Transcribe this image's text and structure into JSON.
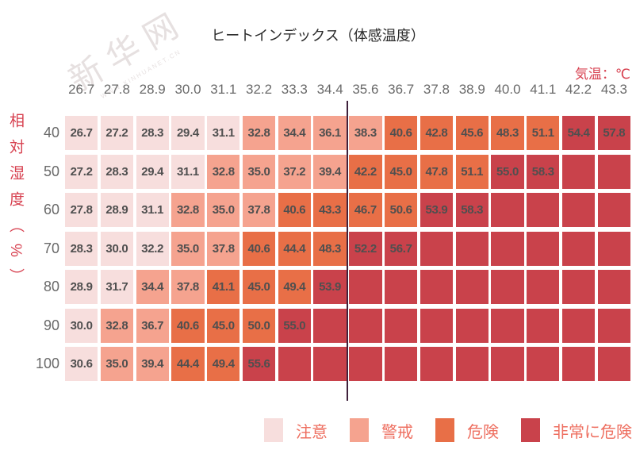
{
  "watermark": {
    "text": "新华网",
    "subtext": "WWW.XINHUANET.CN"
  },
  "colors": {
    "level1": "#f7dedd",
    "level2": "#f5a38f",
    "level3": "#e86f47",
    "level4": "#c9424b",
    "accent_red": "#d7404f",
    "legend_text": "#ee6f60",
    "divider_line": "#40213c",
    "header_text": "#6a6a6a",
    "cell_text": "#4f4f4f"
  },
  "legend": [
    {
      "label": "注意",
      "level": 1
    },
    {
      "label": "警戒",
      "level": 2
    },
    {
      "label": "危険",
      "level": 3
    },
    {
      "label": "非常に危険",
      "level": 4
    }
  ],
  "chart_data": {
    "type": "heatmap",
    "title": "ヒートインデックス（体感温度）",
    "x_label": "気温：℃",
    "y_label": "相対湿度（%）",
    "x": [
      26.7,
      27.8,
      28.9,
      30.0,
      31.1,
      32.2,
      33.3,
      34.4,
      35.6,
      36.7,
      37.8,
      38.9,
      40.0,
      41.1,
      42.2,
      43.3
    ],
    "y": [
      40,
      50,
      60,
      70,
      80,
      90,
      100
    ],
    "values": [
      [
        26.7,
        27.2,
        28.3,
        29.4,
        31.1,
        32.8,
        34.4,
        36.1,
        38.3,
        40.6,
        42.8,
        45.6,
        48.3,
        51.1,
        54.4,
        57.8
      ],
      [
        27.2,
        28.3,
        29.4,
        31.1,
        32.8,
        35.0,
        37.2,
        39.4,
        42.2,
        45.0,
        47.8,
        51.1,
        55.0,
        58.3,
        null,
        null
      ],
      [
        27.8,
        28.9,
        31.1,
        32.8,
        35.0,
        37.8,
        40.6,
        43.3,
        46.7,
        50.6,
        53.9,
        58.3,
        null,
        null,
        null,
        null
      ],
      [
        28.3,
        30.0,
        32.2,
        35.0,
        37.8,
        40.6,
        44.4,
        48.3,
        52.2,
        56.7,
        null,
        null,
        null,
        null,
        null,
        null
      ],
      [
        28.9,
        31.7,
        34.4,
        37.8,
        41.1,
        45.0,
        49.4,
        53.9,
        null,
        null,
        null,
        null,
        null,
        null,
        null,
        null
      ],
      [
        30.0,
        32.8,
        36.7,
        40.6,
        45.0,
        50.0,
        55.0,
        null,
        null,
        null,
        null,
        null,
        null,
        null,
        null,
        null
      ],
      [
        30.6,
        35.0,
        39.4,
        44.4,
        49.4,
        55.6,
        null,
        null,
        null,
        null,
        null,
        null,
        null,
        null,
        null,
        null
      ]
    ],
    "levels": [
      [
        1,
        1,
        1,
        1,
        1,
        2,
        2,
        2,
        2,
        3,
        3,
        3,
        3,
        3,
        4,
        4
      ],
      [
        1,
        1,
        1,
        1,
        2,
        2,
        2,
        2,
        3,
        3,
        3,
        3,
        4,
        4,
        4,
        4
      ],
      [
        1,
        1,
        1,
        2,
        2,
        2,
        3,
        3,
        3,
        3,
        4,
        4,
        4,
        4,
        4,
        4
      ],
      [
        1,
        1,
        1,
        2,
        2,
        3,
        3,
        3,
        4,
        4,
        4,
        4,
        4,
        4,
        4,
        4
      ],
      [
        1,
        1,
        2,
        2,
        3,
        3,
        3,
        4,
        4,
        4,
        4,
        4,
        4,
        4,
        4,
        4
      ],
      [
        1,
        2,
        2,
        3,
        3,
        3,
        4,
        4,
        4,
        4,
        4,
        4,
        4,
        4,
        4,
        4
      ],
      [
        1,
        2,
        2,
        3,
        3,
        4,
        4,
        4,
        4,
        4,
        4,
        4,
        4,
        4,
        4,
        4
      ]
    ],
    "level_names": [
      "注意",
      "警戒",
      "危険",
      "非常に危険"
    ],
    "divider_after_column_index": 8,
    "legend_position": "bottom",
    "grid": false
  }
}
